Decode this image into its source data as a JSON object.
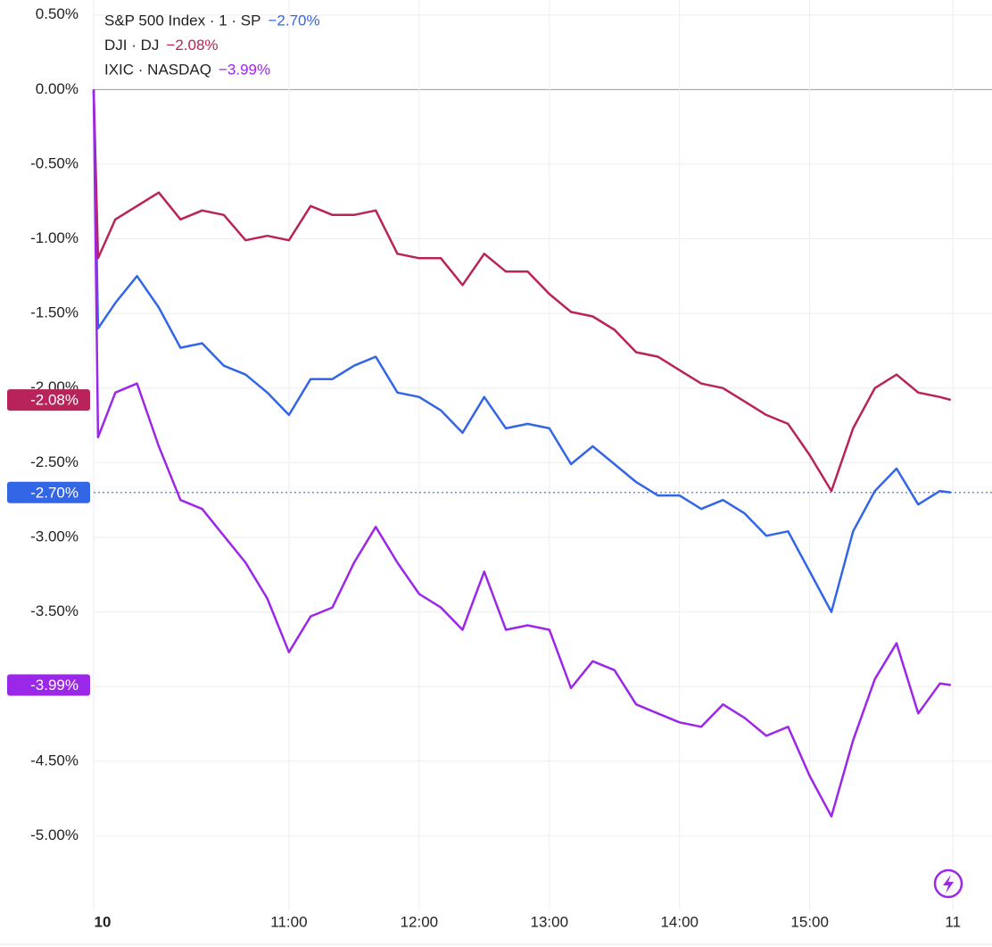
{
  "chart_data": {
    "type": "line",
    "x": [
      570,
      572,
      580,
      590,
      600,
      610,
      620,
      630,
      640,
      650,
      660,
      670,
      680,
      690,
      700,
      710,
      720,
      730,
      740,
      750,
      760,
      770,
      780,
      790,
      800,
      810,
      820,
      830,
      840,
      850,
      860,
      870,
      880,
      890,
      900,
      910,
      920,
      930,
      940,
      950,
      960,
      965
    ],
    "xlim": [
      570,
      984
    ],
    "xticks": [
      {
        "value": 570,
        "label": "10"
      },
      {
        "value": 660,
        "label": "11:00"
      },
      {
        "value": 720,
        "label": "12:00"
      },
      {
        "value": 780,
        "label": "13:00"
      },
      {
        "value": 840,
        "label": "14:00"
      },
      {
        "value": 900,
        "label": "15:00"
      },
      {
        "value": 966,
        "label": "11"
      }
    ],
    "ylim": [
      -5.5,
      0.6
    ],
    "yticks": [
      {
        "value": 0.5,
        "label": "0.50%"
      },
      {
        "value": 0,
        "label": "0.00%"
      },
      {
        "value": -0.5,
        "label": "-0.50%"
      },
      {
        "value": -1,
        "label": "-1.00%"
      },
      {
        "value": -1.5,
        "label": "-1.50%"
      },
      {
        "value": -2,
        "label": "-2.00%"
      },
      {
        "value": -2.5,
        "label": "-2.50%"
      },
      {
        "value": -3,
        "label": "-3.00%"
      },
      {
        "value": -3.5,
        "label": "-3.50%"
      },
      {
        "value": -4,
        "label": "-4.00%"
      },
      {
        "value": -4.5,
        "label": "-4.50%"
      },
      {
        "value": -5,
        "label": "-5.00%"
      }
    ],
    "grid": true,
    "series": [
      {
        "name": "S&P 500 Index · 1 · SP",
        "color": "#3366e6",
        "legend_value": "−2.70%",
        "badge_label": "-2.70%",
        "dotted_last": true,
        "values": [
          0,
          -1.6,
          -1.43,
          -1.25,
          -1.46,
          -1.73,
          -1.7,
          -1.85,
          -1.91,
          -2.03,
          -2.18,
          -1.94,
          -1.94,
          -1.85,
          -1.79,
          -2.03,
          -2.06,
          -2.15,
          -2.3,
          -2.06,
          -2.27,
          -2.24,
          -2.27,
          -2.51,
          -2.39,
          -2.51,
          -2.63,
          -2.72,
          -2.72,
          -2.81,
          -2.75,
          -2.84,
          -2.99,
          -2.96,
          -3.23,
          -3.5,
          -2.96,
          -2.69,
          -2.54,
          -2.78,
          -2.69,
          -2.7
        ]
      },
      {
        "name": "DJI · DJ",
        "color": "#b8235a",
        "legend_value": "−2.08%",
        "badge_label": "-2.08%",
        "dotted_last": false,
        "values": [
          0,
          -1.13,
          -0.87,
          -0.78,
          -0.69,
          -0.87,
          -0.81,
          -0.84,
          -1.01,
          -0.98,
          -1.01,
          -0.78,
          -0.84,
          -0.84,
          -0.81,
          -1.1,
          -1.13,
          -1.13,
          -1.31,
          -1.1,
          -1.22,
          -1.22,
          -1.37,
          -1.49,
          -1.52,
          -1.61,
          -1.76,
          -1.79,
          -1.88,
          -1.97,
          -2.0,
          -2.09,
          -2.18,
          -2.24,
          -2.45,
          -2.69,
          -2.27,
          -2.0,
          -1.91,
          -2.03,
          -2.06,
          -2.08
        ]
      },
      {
        "name": "IXIC · NASDAQ",
        "color": "#9b27e8",
        "legend_value": "−3.99%",
        "badge_label": "-3.99%",
        "dotted_last": false,
        "values": [
          0,
          -2.33,
          -2.03,
          -1.97,
          -2.39,
          -2.75,
          -2.81,
          -2.99,
          -3.17,
          -3.41,
          -3.77,
          -3.53,
          -3.47,
          -3.17,
          -2.93,
          -3.17,
          -3.38,
          -3.47,
          -3.62,
          -3.23,
          -3.62,
          -3.59,
          -3.62,
          -4.01,
          -3.83,
          -3.89,
          -4.12,
          -4.18,
          -4.24,
          -4.27,
          -4.12,
          -4.21,
          -4.33,
          -4.27,
          -4.6,
          -4.87,
          -4.36,
          -3.95,
          -3.71,
          -4.18,
          -3.98,
          -3.99
        ]
      }
    ]
  }
}
